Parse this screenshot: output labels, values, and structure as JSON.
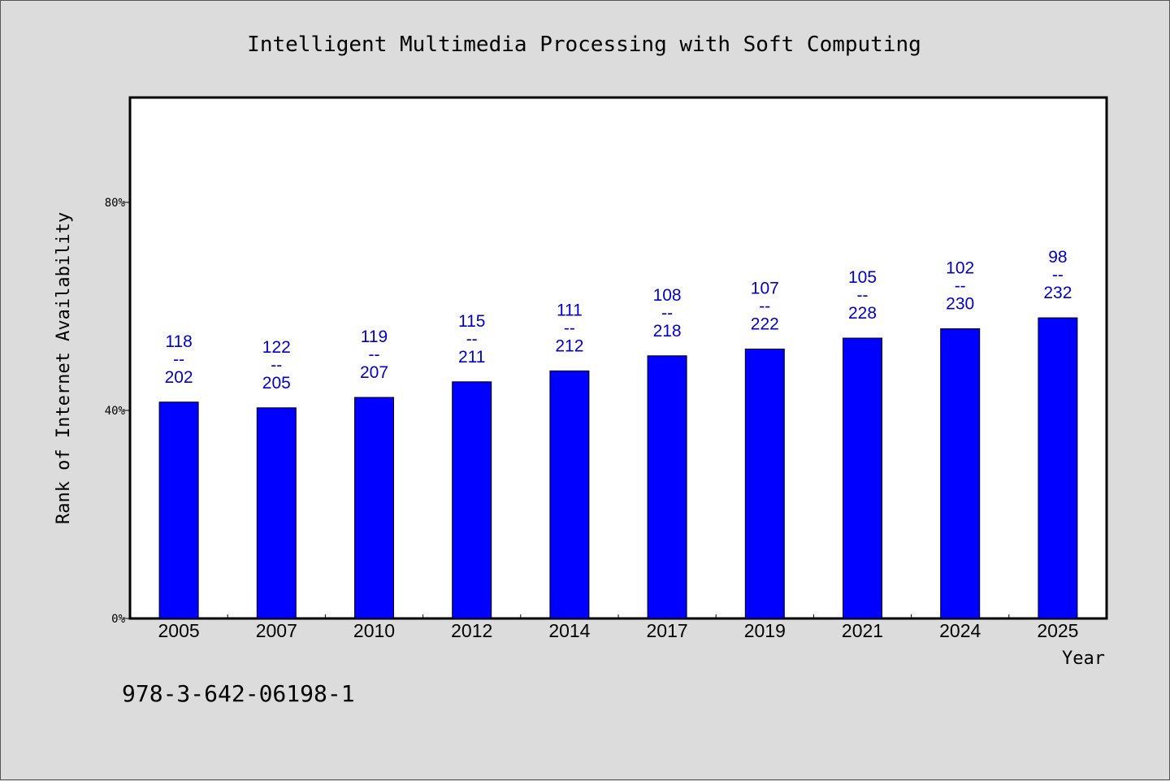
{
  "chart_data": {
    "type": "bar",
    "title": "Intelligent Multimedia Processing with Soft Computing",
    "xlabel": "Year",
    "ylabel": "Rank of Internet Availability",
    "categories": [
      "2005",
      "2007",
      "2010",
      "2012",
      "2014",
      "2017",
      "2019",
      "2021",
      "2024",
      "2025"
    ],
    "values": [
      0.584,
      0.595,
      0.575,
      0.545,
      0.524,
      0.495,
      0.482,
      0.461,
      0.443,
      0.422
    ],
    "data_labels": [
      {
        "top": "118",
        "sep": "--",
        "bottom": "202"
      },
      {
        "top": "122",
        "sep": "--",
        "bottom": "205"
      },
      {
        "top": "119",
        "sep": "--",
        "bottom": "207"
      },
      {
        "top": "115",
        "sep": "--",
        "bottom": "211"
      },
      {
        "top": "111",
        "sep": "--",
        "bottom": "212"
      },
      {
        "top": "108",
        "sep": "--",
        "bottom": "218"
      },
      {
        "top": "107",
        "sep": "--",
        "bottom": "222"
      },
      {
        "top": "105",
        "sep": "--",
        "bottom": "228"
      },
      {
        "top": "102",
        "sep": "--",
        "bottom": "230"
      },
      {
        "top": "98",
        "sep": "--",
        "bottom": "232"
      }
    ],
    "yticks": [
      {
        "value": 0,
        "label": "0%"
      },
      {
        "value": 0.4,
        "label": "40%"
      },
      {
        "value": 0.8,
        "label": "80%"
      }
    ],
    "ylim": [
      0,
      1
    ],
    "inverted_y": true,
    "bar_color": "#0000ff",
    "label_color": "#0000cc",
    "grid": false,
    "footer": "978-3-642-06198-1"
  }
}
